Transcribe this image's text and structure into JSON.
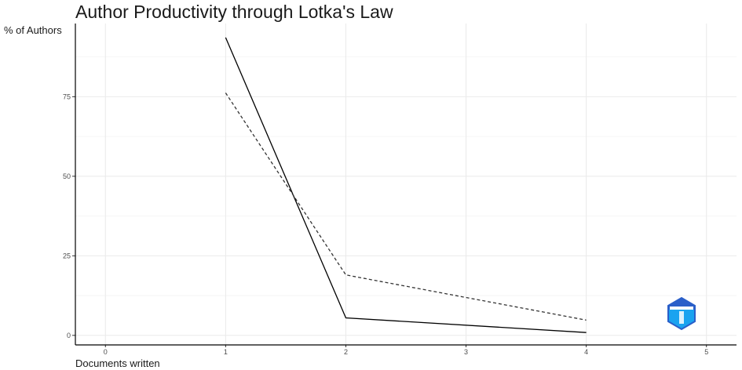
{
  "chart_data": {
    "type": "line",
    "title": "Author Productivity through Lotka's Law",
    "xlabel": "Documents written",
    "ylabel": "% of Authors",
    "xlim": [
      -0.25,
      5.25
    ],
    "ylim": [
      -3,
      98
    ],
    "x_ticks": [
      0,
      1,
      2,
      3,
      4,
      5
    ],
    "y_ticks": [
      0,
      25,
      50,
      75
    ],
    "grid": true,
    "legend": "none",
    "series": [
      {
        "style": "solid",
        "color": "#000000",
        "x": [
          1,
          2,
          4
        ],
        "y": [
          93.6,
          5.5,
          0.9
        ]
      },
      {
        "style": "dashed",
        "color": "#333333",
        "x": [
          1,
          2,
          4
        ],
        "y": [
          76.2,
          19.0,
          4.8
        ]
      }
    ],
    "logo": {
      "text": "BIBLIOMETRIX",
      "colors": [
        "#2a5fc9",
        "#1aa3f0"
      ]
    }
  }
}
